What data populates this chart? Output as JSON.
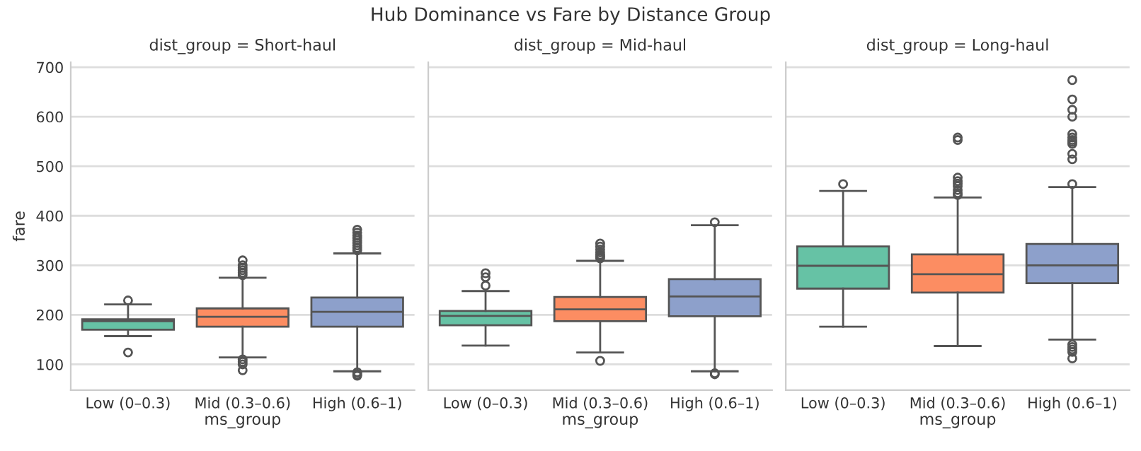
{
  "chart_data": [
    {
      "type": "box",
      "title": "dist_group = Short-haul",
      "xlabel": "ms_group",
      "ylabel": "fare",
      "annotations": [
        "Hub Dominance vs Fare by Distance Group"
      ],
      "categories": [
        "Low (0–0.3)",
        "Mid (0.3–0.6)",
        "High (0.6–1)"
      ],
      "colors": [
        "#66c2a5",
        "#fc8d62",
        "#8da0cb"
      ],
      "ylim": [
        48,
        710
      ],
      "yticks": [
        100,
        200,
        300,
        400,
        500,
        600,
        700
      ],
      "grid": "y",
      "boxes": [
        {
          "low": 157,
          "q1": 170,
          "median": 187,
          "q3": 191,
          "high": 221,
          "outliers": [
            229,
            124
          ]
        },
        {
          "low": 114,
          "q1": 176,
          "median": 196,
          "q3": 213,
          "high": 275,
          "outliers": [
            280,
            285,
            290,
            295,
            300,
            310,
            110,
            105,
            100,
            88
          ]
        },
        {
          "low": 86,
          "q1": 176,
          "median": 206,
          "q3": 235,
          "high": 324,
          "outliers": [
            330,
            335,
            340,
            345,
            350,
            355,
            360,
            366,
            372,
            84,
            80,
            77
          ]
        }
      ]
    },
    {
      "type": "box",
      "title": "dist_group = Mid-haul",
      "xlabel": "ms_group",
      "categories": [
        "Low (0–0.3)",
        "Mid (0.3–0.6)",
        "High (0.6–1)"
      ],
      "colors": [
        "#66c2a5",
        "#fc8d62",
        "#8da0cb"
      ],
      "ylim": [
        48,
        710
      ],
      "tick_labels": "x",
      "grid": "y",
      "boxes": [
        {
          "low": 138,
          "q1": 179,
          "median": 198,
          "q3": 208,
          "high": 248,
          "outliers": [
            259,
            276,
            284
          ]
        },
        {
          "low": 124,
          "q1": 187,
          "median": 211,
          "q3": 236,
          "high": 309,
          "outliers": [
            314,
            318,
            321,
            326,
            332,
            338,
            344,
            107
          ]
        },
        {
          "low": 86,
          "q1": 197,
          "median": 237,
          "q3": 272,
          "high": 381,
          "outliers": [
            387,
            82,
            80
          ]
        }
      ]
    },
    {
      "type": "box",
      "title": "dist_group = Long-haul",
      "xlabel": "ms_group",
      "categories": [
        "Low (0–0.3)",
        "Mid (0.3–0.6)",
        "High (0.6–1)"
      ],
      "colors": [
        "#66c2a5",
        "#fc8d62",
        "#8da0cb"
      ],
      "ylim": [
        48,
        710
      ],
      "tick_labels": "x",
      "grid": "y",
      "boxes": [
        {
          "low": 176,
          "q1": 253,
          "median": 299,
          "q3": 338,
          "high": 450,
          "outliers": [
            464
          ]
        },
        {
          "low": 137,
          "q1": 245,
          "median": 282,
          "q3": 322,
          "high": 437,
          "outliers": [
            442,
            446,
            452,
            460,
            465,
            470,
            477,
            553,
            558
          ]
        },
        {
          "low": 150,
          "q1": 264,
          "median": 300,
          "q3": 343,
          "high": 458,
          "outliers": [
            464,
            514,
            525,
            545,
            549,
            553,
            558,
            565,
            600,
            614,
            635,
            674,
            140,
            135,
            130,
            125,
            112
          ]
        }
      ]
    }
  ]
}
